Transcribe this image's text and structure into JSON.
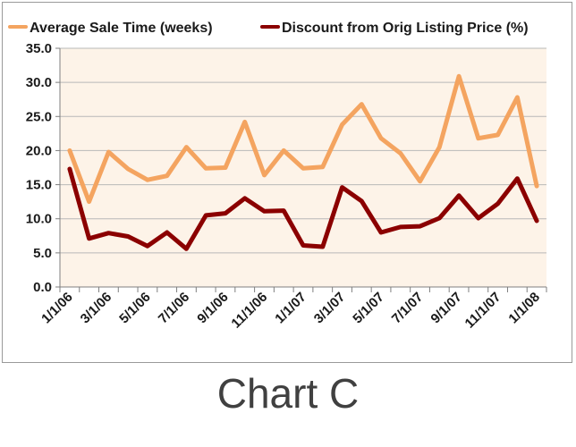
{
  "caption": "Chart C",
  "chart_data": {
    "type": "line",
    "x": [
      "1/1/06",
      "2/1/06",
      "3/1/06",
      "4/1/06",
      "5/1/06",
      "6/1/06",
      "7/1/06",
      "8/1/06",
      "9/1/06",
      "10/1/06",
      "11/1/06",
      "12/1/06",
      "1/1/07",
      "2/1/07",
      "3/1/07",
      "4/1/07",
      "5/1/07",
      "6/1/07",
      "7/1/07",
      "8/1/07",
      "9/1/07",
      "10/1/07",
      "11/1/07",
      "12/1/07",
      "1/1/08"
    ],
    "xtick_labels": [
      "1/1/06",
      "3/1/06",
      "5/1/06",
      "7/1/06",
      "9/1/06",
      "11/1/06",
      "1/1/07",
      "3/1/07",
      "5/1/07",
      "7/1/07",
      "9/1/07",
      "11/1/07",
      "1/1/08"
    ],
    "series": [
      {
        "name": "Average Sale Time (weeks)",
        "color": "#f4a460",
        "values": [
          20.0,
          12.5,
          19.8,
          17.3,
          15.7,
          16.3,
          20.5,
          17.4,
          17.5,
          24.2,
          16.4,
          20.0,
          17.4,
          17.6,
          23.8,
          26.8,
          21.8,
          19.6,
          15.5,
          20.5,
          30.9,
          21.8,
          22.3,
          27.8,
          14.8
        ]
      },
      {
        "name": "Discount from Orig Listing Price (%)",
        "color": "#8b0000",
        "values": [
          17.3,
          7.1,
          7.9,
          7.4,
          6.0,
          8.0,
          5.6,
          10.5,
          10.8,
          13.0,
          11.1,
          11.2,
          6.1,
          5.9,
          14.6,
          12.6,
          8.0,
          8.8,
          8.9,
          10.1,
          13.4,
          10.1,
          12.2,
          15.9,
          9.7
        ]
      }
    ],
    "ylim": [
      0,
      35
    ],
    "yticks": [
      0,
      5,
      10,
      15,
      20,
      25,
      30,
      35
    ],
    "title": "",
    "xlabel": "",
    "ylabel": "",
    "legend_position": "top",
    "grid": "horizontal",
    "plot_background": "#fdf3e8"
  }
}
